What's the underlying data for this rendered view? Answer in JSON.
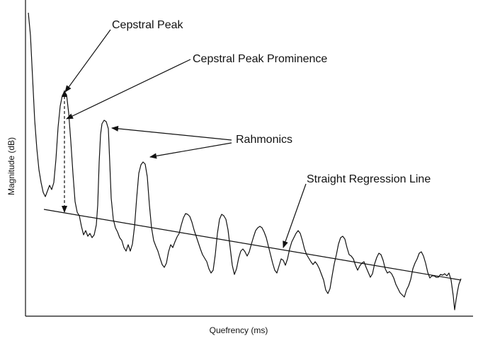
{
  "diagram": {
    "annotations": {
      "cepstral_peak": "Cepstral Peak",
      "cepstral_peak_prominence": "Cepstral Peak Prominence",
      "rahmonics": "Rahmonics",
      "regression_line": "Straight Regression Line"
    },
    "axes": {
      "xlabel": "Quefrency (ms)",
      "ylabel": "Magnitude (dB)"
    },
    "colors": {
      "ink": "#111111",
      "background": "#ffffff"
    }
  }
}
